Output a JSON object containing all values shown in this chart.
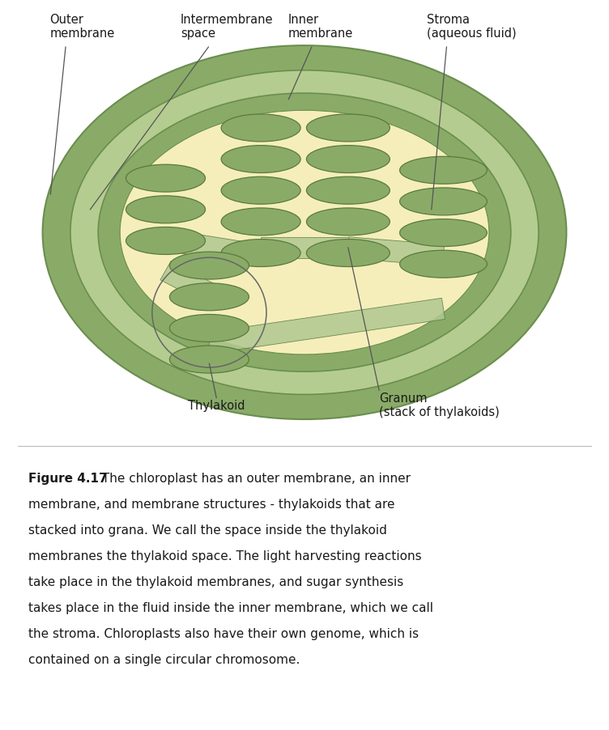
{
  "bg_color": "#ffffff",
  "outer_membrane_color": "#8aab68",
  "outer_membrane_edge": "#6a8e4e",
  "intermembrane_color": "#b5cc90",
  "inner_membrane_color": "#8aab68",
  "stroma_color": "#f5eebb",
  "thylakoid_fill": "#8aab68",
  "thylakoid_edge": "#5a7a3e",
  "connector_color": "#b0c890",
  "label_outer_membrane": "Outer\nmembrane",
  "label_intermembrane": "Intermembrane\nspace",
  "label_inner_membrane": "Inner\nmembrane",
  "label_stroma": "Stroma\n(aqueous fluid)",
  "label_granum": "Granum\n(stack of thylakoids)",
  "label_thylakoid": "Thylakoid",
  "caption_bold": "Figure 4.17",
  "caption_normal": " The chloroplast has an outer membrane, an inner membrane, and membrane structures - thylakoids that are stacked into grana. We call the space inside the thylakoid membranes the thylakoid space. The light harvesting reactions take place in the thylakoid membranes, and sugar synthesis takes place in the fluid inside the inner membrane, which we call the stroma. Chloroplasts also have their own genome, which is contained on a single circular chromosome.",
  "font_size_labels": 10.5,
  "font_size_caption": 11,
  "text_color": "#1a1a1a",
  "line_color": "#555555"
}
